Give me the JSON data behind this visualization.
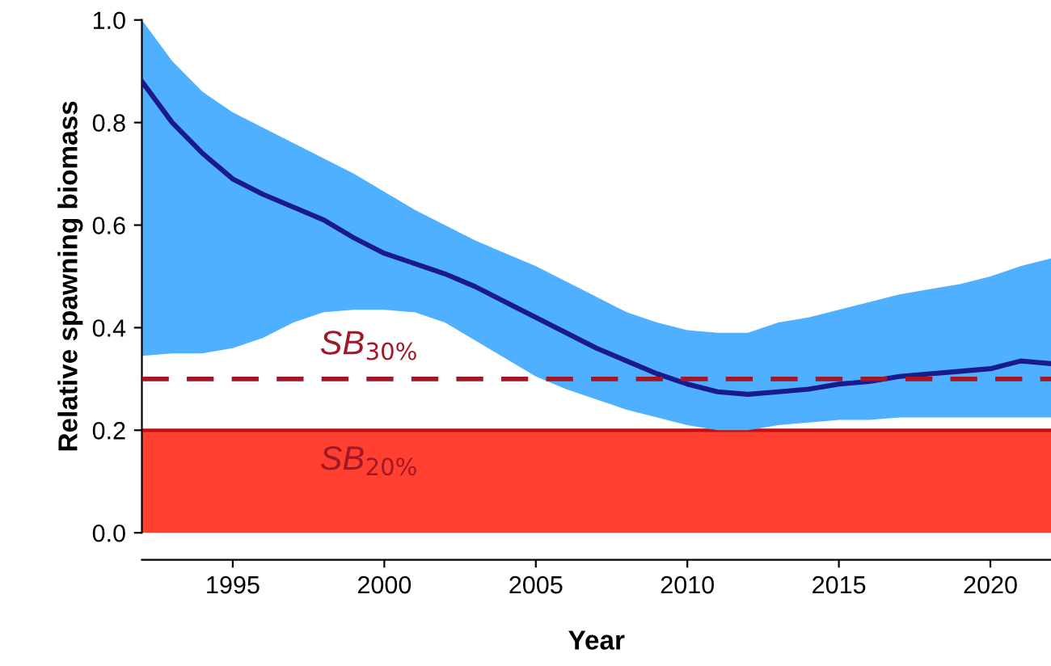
{
  "chart_data": {
    "type": "line",
    "xlabel": "Year",
    "ylabel": "Relative spawning biomass",
    "xlim": [
      1992,
      2022
    ],
    "xticks": [
      1995,
      2000,
      2005,
      2010,
      2015,
      2020
    ],
    "ylim": [
      0,
      1.0
    ],
    "yticks": [
      {
        "value": 0,
        "label": "0.0"
      },
      0.2,
      0.4,
      0.6,
      0.8,
      {
        "value": 1,
        "label": "1.0"
      }
    ],
    "x": [
      1992,
      1993,
      1994,
      1995,
      1996,
      1997,
      1998,
      1999,
      2000,
      2001,
      2002,
      2003,
      2004,
      2005,
      2006,
      2007,
      2008,
      2009,
      2010,
      2011,
      2012,
      2013,
      2014,
      2015,
      2016,
      2017,
      2018,
      2019,
      2020,
      2021,
      2022
    ],
    "series": [
      {
        "color": "#1a1a8c",
        "values": [
          0.88,
          0.8,
          0.74,
          0.69,
          0.66,
          0.635,
          0.61,
          0.575,
          0.545,
          0.525,
          0.505,
          0.48,
          0.45,
          0.42,
          0.39,
          0.36,
          0.335,
          0.31,
          0.29,
          0.275,
          0.27,
          0.275,
          0.28,
          0.29,
          0.295,
          0.305,
          0.31,
          0.315,
          0.32,
          0.335,
          0.33
        ],
        "upper": [
          1.0,
          0.92,
          0.86,
          0.82,
          0.79,
          0.76,
          0.73,
          0.7,
          0.665,
          0.63,
          0.6,
          0.57,
          0.545,
          0.52,
          0.49,
          0.46,
          0.43,
          0.41,
          0.395,
          0.39,
          0.39,
          0.41,
          0.42,
          0.435,
          0.45,
          0.465,
          0.475,
          0.485,
          0.5,
          0.52,
          0.535
        ],
        "lower": [
          0.345,
          0.35,
          0.35,
          0.36,
          0.38,
          0.41,
          0.43,
          0.435,
          0.435,
          0.43,
          0.41,
          0.375,
          0.34,
          0.305,
          0.28,
          0.26,
          0.24,
          0.225,
          0.21,
          0.2,
          0.2,
          0.21,
          0.215,
          0.22,
          0.22,
          0.225,
          0.225,
          0.225,
          0.225,
          0.225,
          0.225
        ]
      }
    ],
    "ref_lines": [
      {
        "axis": "y",
        "value": 0.3,
        "label": "SB$_{30%}$",
        "color": "#a01828",
        "line_style": "dashed"
      },
      {
        "axis": "y",
        "value": 0.2,
        "color": "#c01010",
        "line_style": "solid"
      }
    ],
    "bands": [
      {
        "axis": "y",
        "from": 0,
        "to": 0.2,
        "label": "SB$_{20%}$",
        "color": "#ff4030"
      }
    ],
    "grid": false,
    "legend": false,
    "marker": "none",
    "line_style": "solid"
  }
}
